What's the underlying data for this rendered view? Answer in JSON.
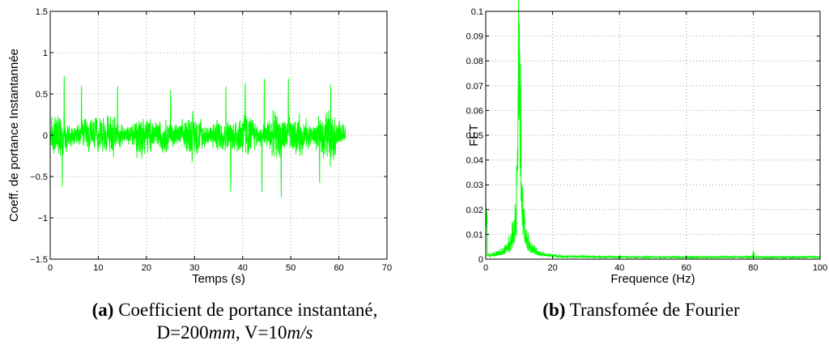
{
  "chart_data": [
    {
      "type": "line",
      "xlabel": "Temps (s)",
      "ylabel": "Coeff. de portance Instantannée",
      "xlim": [
        0,
        70
      ],
      "ylim": [
        -1.5,
        1.5
      ],
      "xticks": [
        "0",
        "10",
        "20",
        "30",
        "40",
        "50",
        "60",
        "70"
      ],
      "yticks": [
        "−1.5",
        "−1",
        "−0.5",
        "0",
        "0.5",
        "1",
        "1.5"
      ],
      "grid": true,
      "color": "#00ff00",
      "signal": {
        "t_start": 0,
        "t_end": 61.4,
        "mean": 0.0,
        "typical_envelope": 0.35,
        "peaks": [
          {
            "t": 2.9,
            "value": 0.74
          },
          {
            "t": 6.5,
            "value": 0.62
          },
          {
            "t": 14.0,
            "value": 0.62
          },
          {
            "t": 25.0,
            "value": 0.57
          },
          {
            "t": 36.5,
            "value": 0.62
          },
          {
            "t": 40.5,
            "value": 0.65
          },
          {
            "t": 44.5,
            "value": 0.72
          },
          {
            "t": 49.5,
            "value": 0.72
          },
          {
            "t": 58.3,
            "value": 0.65
          },
          {
            "t": 2.5,
            "value": -0.65
          },
          {
            "t": 37.5,
            "value": -0.72
          },
          {
            "t": 44.0,
            "value": -0.72
          },
          {
            "t": 48.0,
            "value": -0.78
          },
          {
            "t": 56.0,
            "value": -0.6
          }
        ]
      }
    },
    {
      "type": "line",
      "xlabel": "Frequence (Hz)",
      "ylabel": "FFT",
      "xlim": [
        0,
        100
      ],
      "ylim": [
        0,
        0.1
      ],
      "xticks": [
        "0",
        "20",
        "40",
        "60",
        "80",
        "100"
      ],
      "yticks": [
        "0",
        "0.01",
        "0.02",
        "0.03",
        "0.04",
        "0.05",
        "0.06",
        "0.07",
        "0.08",
        "0.09",
        "0.1"
      ],
      "grid": true,
      "color": "#00ff00",
      "spectrum": {
        "f_end": 100,
        "peak_frequency": 10,
        "peak_value": 0.095,
        "secondary_peak": {
          "f": 80,
          "value": 0.002
        },
        "baseline": 0.0008
      }
    }
  ],
  "captions": {
    "a_label": "(a)",
    "a_text": "Coefficient de portance instantané,",
    "a_line2_d": "D=200",
    "a_line2_d_unit": "mm",
    "a_line2_sep": ", V=10",
    "a_line2_v_unit": "m/s",
    "b_label": "(b)",
    "b_text": "Transfomée de Fourier"
  }
}
